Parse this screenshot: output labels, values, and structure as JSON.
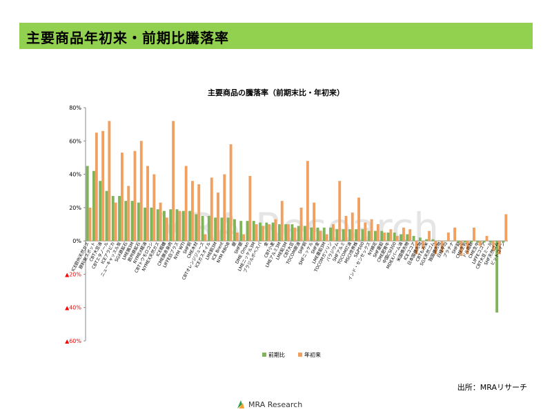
{
  "page": {
    "title": "主要商品年初来・前期比騰落率",
    "source": "出所：MRAリサーチ",
    "logo_text": "MRA Research",
    "watermark": "MRA Research",
    "colors": {
      "header_bg": "#92d050",
      "series_mom": "#7fb45a",
      "series_ytd": "#f0a060",
      "negative_tick": "#ff0000"
    }
  },
  "chart_data": {
    "type": "bar",
    "title": "主要商品の騰落率（前期末比・年初来）",
    "ylim": [
      -60,
      80
    ],
    "yticks": [
      80,
      60,
      40,
      20,
      0,
      -20,
      -40,
      -60
    ],
    "ytick_labels": [
      "80%",
      "60%",
      "40%",
      "20%",
      "0%",
      "▲20%",
      "▲40%",
      "▲60%"
    ],
    "legend_position": "bottom",
    "categories": [
      "ICE欧州天然ガス",
      "原料炭スポット",
      "CBT大豆油",
      "CBTエタノール",
      "ICEアラビカ",
      "ニューキャッスル炭",
      "SGX鉄鉱石",
      "LME錫3M",
      "欧州鉄鉱石",
      "NYMEX軽油",
      "CBTトウモロコシ",
      "NYMEX天然ガス",
      "ICE粗糖",
      "CME豚赤身肉",
      "LIFFE白ブラス",
      "NYM WTI",
      "SHF銅",
      "CME木材",
      "CBTオレンジジュース",
      "ICEガスオイル",
      "LME銅3M",
      "ICE Brent",
      "NYM RBOB",
      "銀",
      "SHF銀",
      "DME Oman",
      "LMEニッケル3M",
      "ブラジルボベスパ",
      "金",
      "CBT小麦",
      "LMEアルミ3M",
      "LME鉛3M",
      "CBT大豆",
      "TOCOM原油",
      "SHF銅",
      "SHFニッケル",
      "SHF金",
      "LME亜鉛3M",
      "TOCOMガソリン",
      "パラジウム",
      "SHFアルミ",
      "TOCOM灯油",
      "MSCI世界株",
      "S&P500",
      "インド・センセックス",
      "NY綿花",
      "SHF亜鉛",
      "CME肥育牛",
      "中国CSI300",
      "MDEXパーム油",
      "米国債先物",
      "ICEココア",
      "日本国債先物",
      "CBTもみ米",
      "SGX天然ゴム",
      "独国債先物",
      "日経平均",
      "プラチナ",
      "SHF鉛",
      "CME生乳",
      "ドル指数",
      "CME生牛",
      "LIFFEココア",
      "CBT大豆ミール",
      "SHF天然ゴム",
      "ビットコイン"
    ],
    "series": [
      {
        "name": "前期比",
        "values": [
          45,
          42,
          36,
          30,
          27,
          27,
          24,
          24,
          23,
          20,
          20,
          19,
          18,
          19,
          19,
          18,
          18,
          16,
          15,
          15,
          14,
          14,
          14,
          13,
          12,
          12,
          12,
          11,
          11,
          11,
          10,
          10,
          10,
          9,
          9,
          8,
          8,
          8,
          8,
          7,
          7,
          7,
          7,
          7,
          6,
          6,
          6,
          5,
          5,
          4,
          4,
          3,
          2,
          1,
          1,
          0,
          0,
          0,
          -1,
          -1,
          -1,
          -1,
          -1,
          -1,
          -43,
          -1
        ]
      },
      {
        "name": "年初来",
        "values": [
          20,
          65,
          66,
          72,
          23,
          53,
          33,
          54,
          60,
          45,
          40,
          23,
          14,
          72,
          18,
          45,
          36,
          34,
          4,
          38,
          29,
          40,
          58,
          5,
          4,
          39,
          10,
          9,
          10,
          13,
          24,
          10,
          8,
          20,
          48,
          23,
          6,
          4,
          10,
          36,
          15,
          17,
          26,
          11,
          13,
          10,
          5,
          7,
          3,
          8,
          7,
          -8,
          -5,
          6,
          -8,
          -7,
          5,
          8,
          -9,
          -8,
          8,
          -3,
          3,
          -6,
          -8,
          16
        ]
      }
    ]
  }
}
